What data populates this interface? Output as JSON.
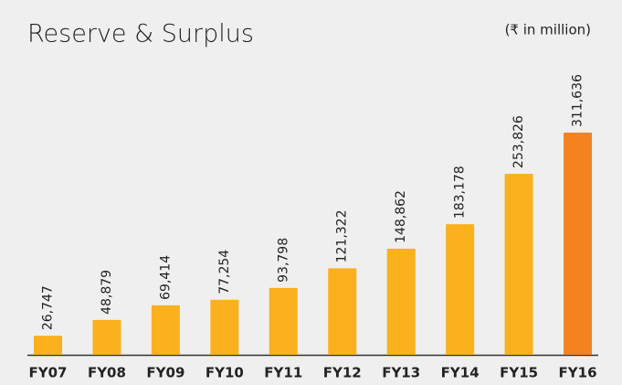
{
  "chart_data": {
    "type": "bar",
    "title": "Reserve & Surplus",
    "subtitle": "(₹ in million)",
    "categories": [
      "FY07",
      "FY08",
      "FY09",
      "FY10",
      "FY11",
      "FY12",
      "FY13",
      "FY14",
      "FY15",
      "FY16"
    ],
    "values": [
      26747,
      48879,
      69414,
      77254,
      93798,
      121322,
      148862,
      183178,
      253826,
      311636
    ],
    "value_labels": [
      "26,747",
      "48,879",
      "69,414",
      "77,254",
      "93,798",
      "121,322",
      "148,862",
      "183,178",
      "253,826",
      "311,636"
    ],
    "colors": [
      "#fbb01d",
      "#fbb01d",
      "#fbb01d",
      "#fbb01d",
      "#fbb01d",
      "#fbb01d",
      "#fbb01d",
      "#fbb01d",
      "#fbb01d",
      "#f58220"
    ]
  }
}
